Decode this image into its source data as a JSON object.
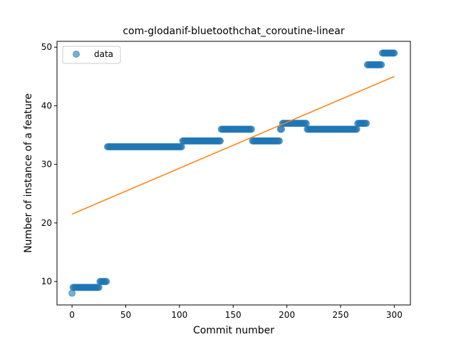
{
  "chart_data": {
    "type": "scatter",
    "title": "com-glodanif-bluetoothchat_coroutine-linear",
    "xlabel": "Commit number",
    "ylabel": "Number of instance of a feature",
    "xlim": [
      -14,
      315
    ],
    "ylim": [
      6,
      51
    ],
    "xticks": [
      0,
      50,
      100,
      150,
      200,
      250,
      300
    ],
    "yticks": [
      10,
      20,
      30,
      40,
      50
    ],
    "legend": {
      "position": "top-left",
      "entries": [
        "data"
      ]
    },
    "grid": false,
    "colors": {
      "data": "#1f77b4",
      "fit": "#ff7f0e"
    },
    "segments": [
      {
        "x_start": 0,
        "x_end": 0,
        "y": 8
      },
      {
        "x_start": 1,
        "x_end": 25,
        "y": 9
      },
      {
        "x_start": 26,
        "x_end": 32,
        "y": 10
      },
      {
        "x_start": 33,
        "x_end": 102,
        "y": 33
      },
      {
        "x_start": 103,
        "x_end": 138,
        "y": 34
      },
      {
        "x_start": 139,
        "x_end": 167,
        "y": 36
      },
      {
        "x_start": 168,
        "x_end": 193,
        "y": 34
      },
      {
        "x_start": 194,
        "x_end": 195,
        "y": 36
      },
      {
        "x_start": 196,
        "x_end": 218,
        "y": 37
      },
      {
        "x_start": 219,
        "x_end": 265,
        "y": 36
      },
      {
        "x_start": 266,
        "x_end": 274,
        "y": 37
      },
      {
        "x_start": 275,
        "x_end": 288,
        "y": 47
      },
      {
        "x_start": 289,
        "x_end": 300,
        "y": 49
      }
    ],
    "fit_line": {
      "x": [
        0,
        300
      ],
      "y": [
        21.5,
        45
      ]
    }
  }
}
